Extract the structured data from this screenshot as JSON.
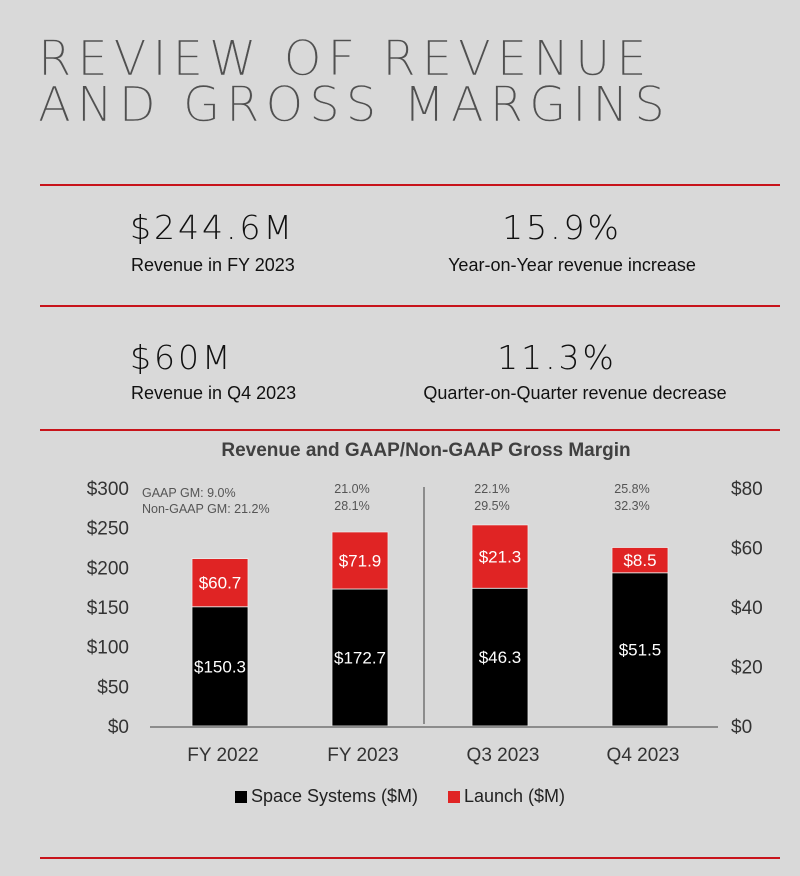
{
  "title": {
    "line1": "REVIEW OF REVENUE",
    "line2": "AND GROSS MARGINS"
  },
  "colors": {
    "accent_red": "#e02424",
    "rule_red": "#c8141b",
    "space_systems": "#000000",
    "background": "#d9d9d9"
  },
  "stats": [
    {
      "value": "$244.6M",
      "label": "Revenue in FY 2023"
    },
    {
      "value": "15.9%",
      "label": "Year-on-Year revenue increase"
    },
    {
      "value": "$60M",
      "label": "Revenue in Q4 2023"
    },
    {
      "value": "11.3%",
      "label": "Quarter-on-Quarter revenue decrease"
    }
  ],
  "chart_data": {
    "type": "bar",
    "stacked": true,
    "title": "Revenue and GAAP/Non-GAAP Gross Margin",
    "categories": [
      "FY 2022",
      "FY 2023",
      "Q3 2023",
      "Q4 2023"
    ],
    "series": [
      {
        "name": "Space Systems ($M)",
        "color": "#000000",
        "values": [
          150.3,
          172.7,
          46.3,
          51.5
        ],
        "labels": [
          "$150.3",
          "$172.7",
          "$46.3",
          "$51.5"
        ]
      },
      {
        "name": "Launch ($M)",
        "color": "#e02424",
        "values": [
          60.7,
          71.9,
          21.3,
          8.5
        ],
        "labels": [
          "$60.7",
          "$71.9",
          "$21.3",
          "$8.5"
        ]
      }
    ],
    "axis_assignment": [
      "left",
      "left",
      "right",
      "right"
    ],
    "left_axis": {
      "ylim": [
        0,
        300
      ],
      "ticks": [
        0,
        50,
        100,
        150,
        200,
        250,
        300
      ],
      "tick_labels": [
        "$0",
        "$50",
        "$100",
        "$150",
        "$200",
        "$250",
        "$300"
      ]
    },
    "right_axis": {
      "ylim": [
        0,
        80
      ],
      "ticks": [
        0,
        20,
        40,
        60,
        80
      ],
      "tick_labels": [
        "$0",
        "$20",
        "$40",
        "$60",
        "$80"
      ]
    },
    "gross_margin_annotations": [
      {
        "gaap": "GAAP GM: 9.0%",
        "non_gaap": "Non-GAAP GM: 21.2%"
      },
      {
        "gaap": "21.0%",
        "non_gaap": "28.1%"
      },
      {
        "gaap": "22.1%",
        "non_gaap": "29.5%"
      },
      {
        "gaap": "25.8%",
        "non_gaap": "32.3%"
      }
    ],
    "legend": {
      "placement": "bottom",
      "entries": [
        "Space Systems ($M)",
        "Launch ($M)"
      ]
    },
    "divider": "between FY 2023 and Q3 2023",
    "grid": false
  }
}
